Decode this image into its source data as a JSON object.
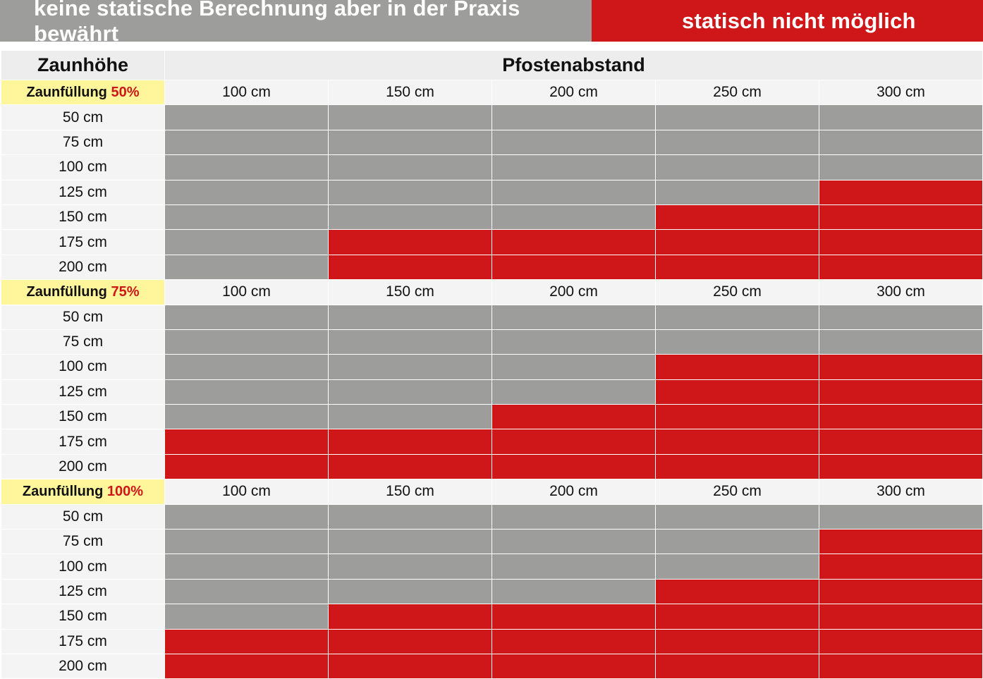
{
  "legend": {
    "gray_label": "keine statische Berechnung aber in der Praxis bewährt",
    "red_label": "statisch nicht möglich"
  },
  "colors": {
    "gray": "#9d9d9b",
    "red": "#cf1719",
    "fill_label_bg": "#fff59a",
    "header_bg": "#ededed"
  },
  "table": {
    "row_header": "Zaunhöhe",
    "column_header": "Pfostenabstand",
    "sections": [
      {
        "fill_label": "Zaunfüllung ",
        "fill_percent": "50%",
        "columns": [
          "100 cm",
          "150 cm",
          "200 cm",
          "250 cm",
          "300 cm"
        ],
        "rows": [
          {
            "height": "50 cm",
            "cells": [
              "gray",
              "gray",
              "gray",
              "gray",
              "gray"
            ]
          },
          {
            "height": "75 cm",
            "cells": [
              "gray",
              "gray",
              "gray",
              "gray",
              "gray"
            ]
          },
          {
            "height": "100 cm",
            "cells": [
              "gray",
              "gray",
              "gray",
              "gray",
              "gray"
            ]
          },
          {
            "height": "125 cm",
            "cells": [
              "gray",
              "gray",
              "gray",
              "gray",
              "red"
            ]
          },
          {
            "height": "150 cm",
            "cells": [
              "gray",
              "gray",
              "gray",
              "red",
              "red"
            ]
          },
          {
            "height": "175 cm",
            "cells": [
              "gray",
              "red",
              "red",
              "red",
              "red"
            ]
          },
          {
            "height": "200 cm",
            "cells": [
              "gray",
              "red",
              "red",
              "red",
              "red"
            ]
          }
        ]
      },
      {
        "fill_label": "Zaunfüllung ",
        "fill_percent": "75%",
        "columns": [
          "100 cm",
          "150 cm",
          "200 cm",
          "250 cm",
          "300 cm"
        ],
        "rows": [
          {
            "height": "50 cm",
            "cells": [
              "gray",
              "gray",
              "gray",
              "gray",
              "gray"
            ]
          },
          {
            "height": "75 cm",
            "cells": [
              "gray",
              "gray",
              "gray",
              "gray",
              "gray"
            ]
          },
          {
            "height": "100 cm",
            "cells": [
              "gray",
              "gray",
              "gray",
              "red",
              "red"
            ]
          },
          {
            "height": "125 cm",
            "cells": [
              "gray",
              "gray",
              "gray",
              "red",
              "red"
            ]
          },
          {
            "height": "150 cm",
            "cells": [
              "gray",
              "gray",
              "red",
              "red",
              "red"
            ]
          },
          {
            "height": "175 cm",
            "cells": [
              "red",
              "red",
              "red",
              "red",
              "red"
            ]
          },
          {
            "height": "200 cm",
            "cells": [
              "red",
              "red",
              "red",
              "red",
              "red"
            ]
          }
        ]
      },
      {
        "fill_label": "Zaunfüllung ",
        "fill_percent": "100%",
        "columns": [
          "100 cm",
          "150 cm",
          "200 cm",
          "250 cm",
          "300 cm"
        ],
        "rows": [
          {
            "height": "50 cm",
            "cells": [
              "gray",
              "gray",
              "gray",
              "gray",
              "gray"
            ]
          },
          {
            "height": "75 cm",
            "cells": [
              "gray",
              "gray",
              "gray",
              "gray",
              "red"
            ]
          },
          {
            "height": "100 cm",
            "cells": [
              "gray",
              "gray",
              "gray",
              "gray",
              "red"
            ]
          },
          {
            "height": "125 cm",
            "cells": [
              "gray",
              "gray",
              "gray",
              "red",
              "red"
            ]
          },
          {
            "height": "150 cm",
            "cells": [
              "gray",
              "red",
              "red",
              "red",
              "red"
            ]
          },
          {
            "height": "175 cm",
            "cells": [
              "red",
              "red",
              "red",
              "red",
              "red"
            ]
          },
          {
            "height": "200 cm",
            "cells": [
              "red",
              "red",
              "red",
              "red",
              "red"
            ]
          }
        ]
      }
    ]
  }
}
